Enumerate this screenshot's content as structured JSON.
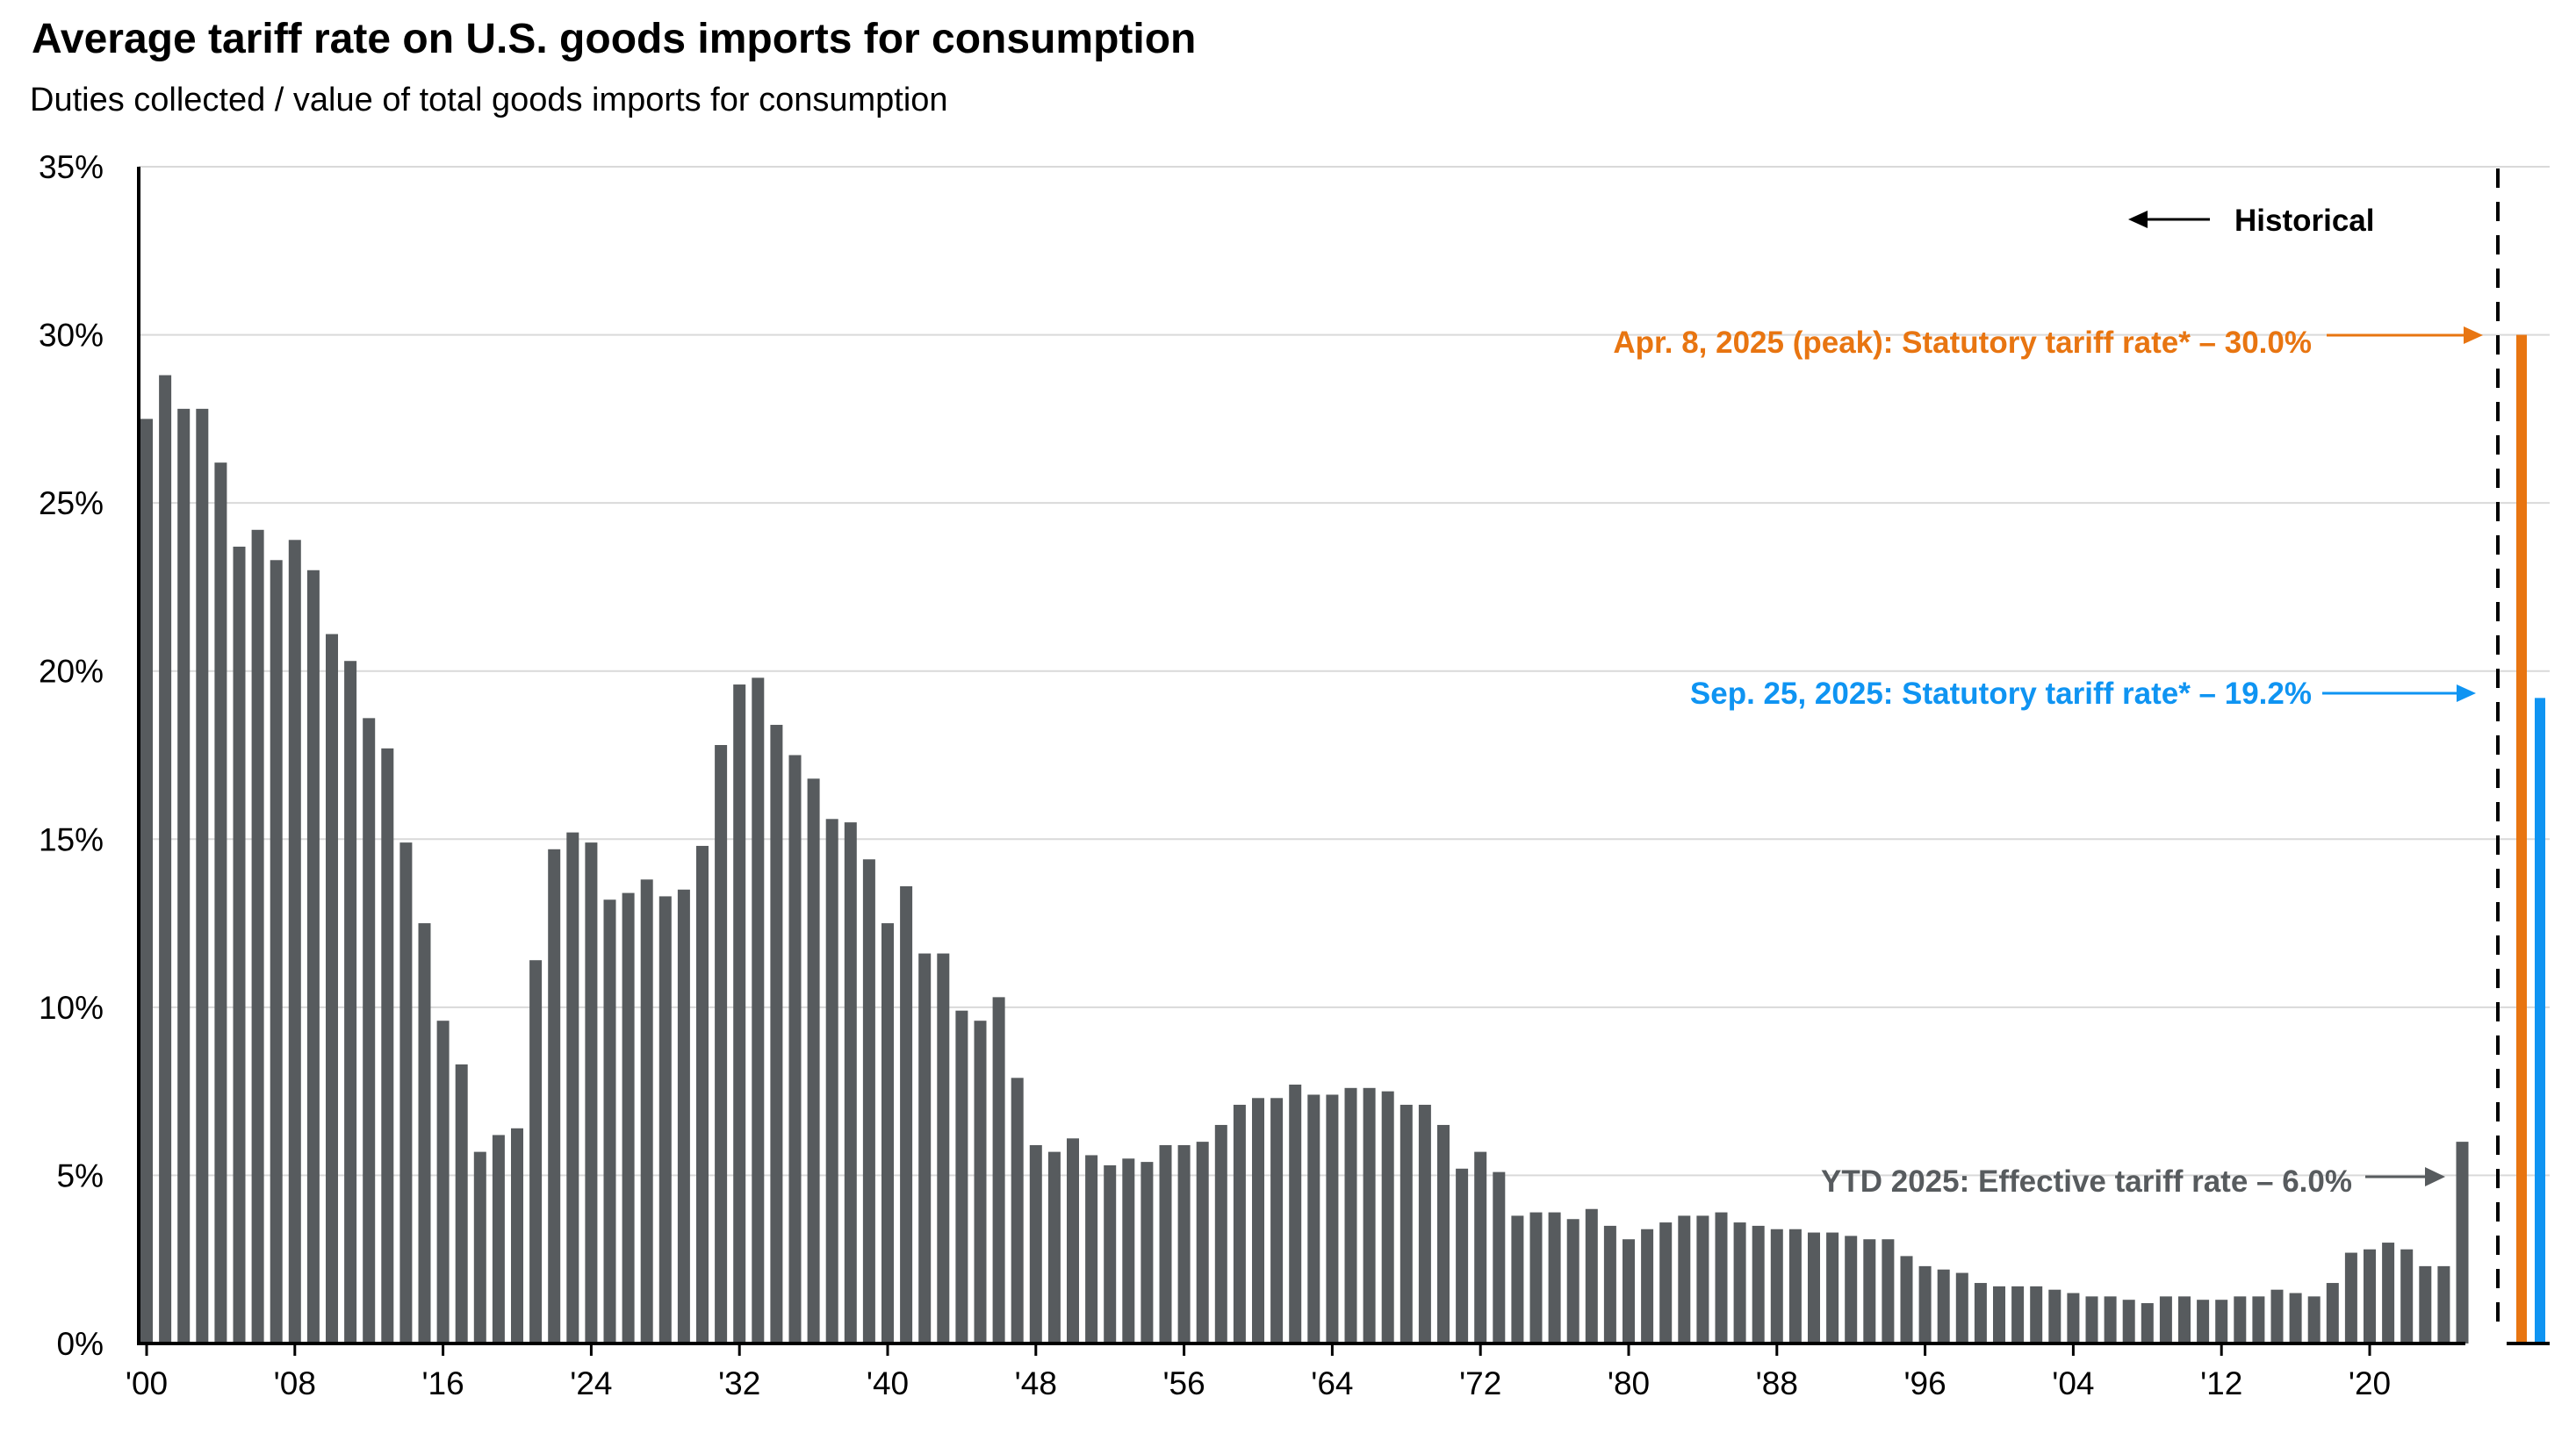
{
  "chart_data": {
    "type": "bar",
    "title": "Average tariff rate on U.S. goods imports for consumption",
    "subtitle": "Duties collected / value of total goods imports for consumption",
    "xlabel": "",
    "ylabel": "",
    "ylim": [
      0,
      35
    ],
    "y_ticks": [
      "0%",
      "5%",
      "10%",
      "15%",
      "20%",
      "25%",
      "30%",
      "35%"
    ],
    "x_tick_labels": [
      "'00",
      "'08",
      "'16",
      "'24",
      "'32",
      "'40",
      "'48",
      "'56",
      "'64",
      "'72",
      "'80",
      "'88",
      "'96",
      "'04",
      "'12",
      "'20"
    ],
    "x_tick_years": [
      1900,
      1908,
      1916,
      1924,
      1932,
      1940,
      1948,
      1956,
      1964,
      1972,
      1980,
      1988,
      1996,
      2004,
      2012,
      2020
    ],
    "grid": true,
    "x_start_year": 1900,
    "series": [
      {
        "name": "Effective tariff rate (historical)",
        "color": "#575b5e",
        "values": [
          27.5,
          28.8,
          27.8,
          27.8,
          26.2,
          23.7,
          24.2,
          23.3,
          23.9,
          23.0,
          21.1,
          20.3,
          18.6,
          17.7,
          14.9,
          12.5,
          9.6,
          8.3,
          5.7,
          6.2,
          6.4,
          11.4,
          14.7,
          15.2,
          14.9,
          13.2,
          13.4,
          13.8,
          13.3,
          13.5,
          14.8,
          17.8,
          19.6,
          19.8,
          18.4,
          17.5,
          16.8,
          15.6,
          15.5,
          14.4,
          12.5,
          13.6,
          11.6,
          11.6,
          9.9,
          9.6,
          10.3,
          7.9,
          5.9,
          5.7,
          6.1,
          5.6,
          5.3,
          5.5,
          5.4,
          5.9,
          5.9,
          6.0,
          6.5,
          7.1,
          7.3,
          7.3,
          7.7,
          7.4,
          7.4,
          7.6,
          7.6,
          7.5,
          7.1,
          7.1,
          6.5,
          5.2,
          5.7,
          5.1,
          3.8,
          3.9,
          3.9,
          3.7,
          4.0,
          3.5,
          3.1,
          3.4,
          3.6,
          3.8,
          3.8,
          3.9,
          3.6,
          3.5,
          3.4,
          3.4,
          3.3,
          3.3,
          3.2,
          3.1,
          3.1,
          2.6,
          2.3,
          2.2,
          2.1,
          1.8,
          1.7,
          1.7,
          1.7,
          1.6,
          1.5,
          1.4,
          1.4,
          1.3,
          1.2,
          1.4,
          1.4,
          1.3,
          1.3,
          1.4,
          1.4,
          1.6,
          1.5,
          1.4,
          1.8,
          2.7,
          2.8,
          3.0,
          2.8,
          2.3,
          2.3,
          6.0
        ]
      },
      {
        "name": "Apr. 8, 2025 statutory",
        "color": "#e87511",
        "values": [
          30.0
        ]
      },
      {
        "name": "Sep. 25, 2025 statutory",
        "color": "#0f94f2",
        "values": [
          19.2
        ]
      }
    ],
    "annotations": {
      "historical": "Historical",
      "peak": "Apr. 8, 2025 (peak): Statutory tariff rate* – 30.0%",
      "sep": "Sep. 25, 2025: Statutory tariff rate* – 19.2%",
      "ytd": "YTD 2025: Effective  tariff rate – 6.0%"
    }
  }
}
